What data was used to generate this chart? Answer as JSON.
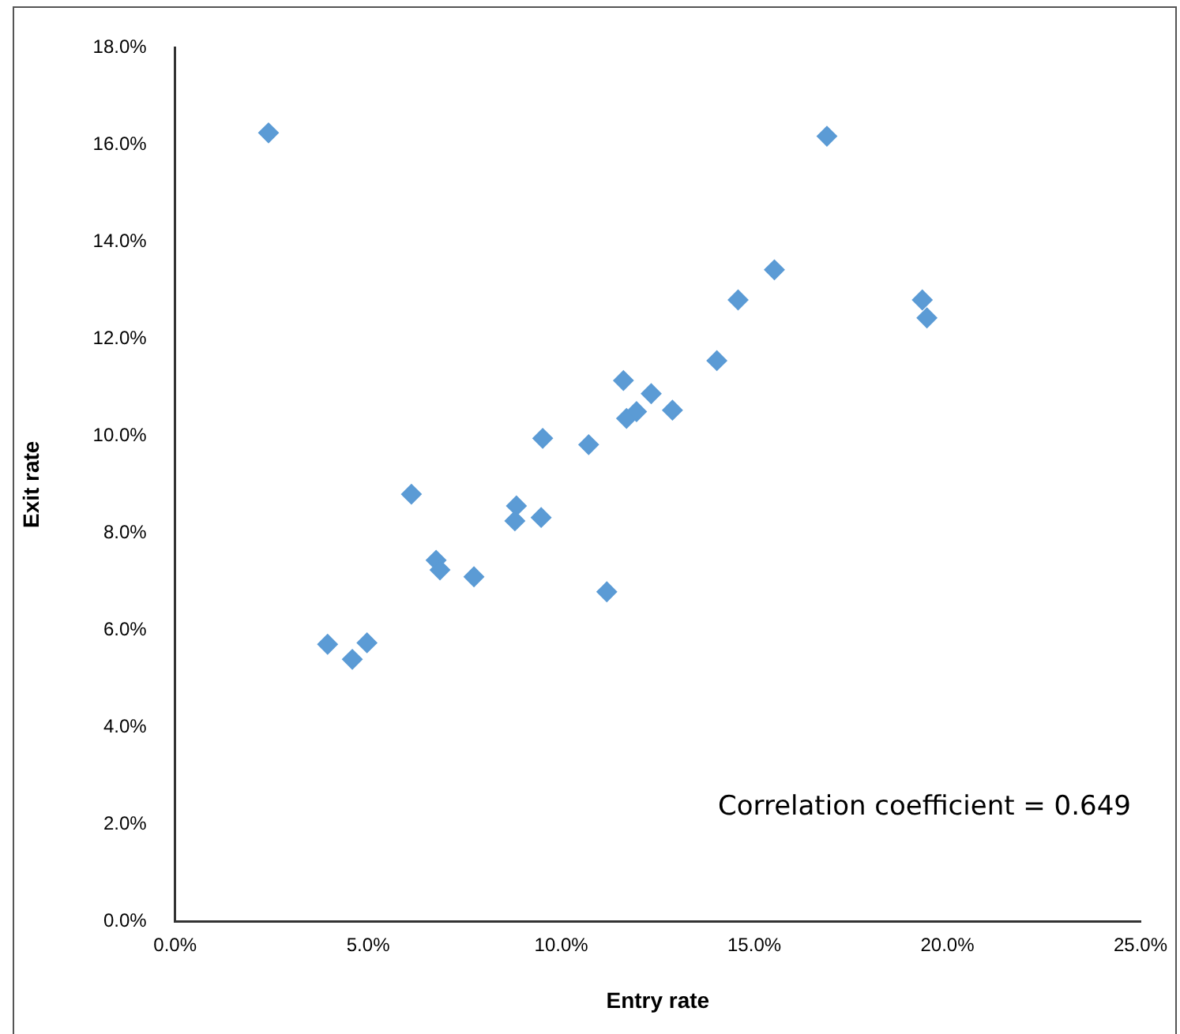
{
  "chart_data": {
    "type": "scatter",
    "xlabel": "Entry rate",
    "ylabel": "Exit rate",
    "annotations": [
      "Correlation coefficient = 0.649"
    ],
    "x": [
      2.42,
      16.88,
      15.52,
      14.58,
      19.35,
      19.47,
      14.03,
      11.61,
      12.33,
      12.88,
      11.69,
      11.95,
      9.52,
      10.71,
      6.12,
      8.84,
      8.8,
      9.48,
      6.76,
      6.86,
      7.74,
      11.18,
      3.95,
      4.59,
      4.97
    ],
    "series": [
      {
        "color": "#5b9bd5",
        "values": [
          16.24,
          16.17,
          13.42,
          12.8,
          12.8,
          12.43,
          11.55,
          11.14,
          10.87,
          10.53,
          10.36,
          10.5,
          9.95,
          9.82,
          8.8,
          8.56,
          8.25,
          8.32,
          7.44,
          7.24,
          7.1,
          6.79,
          5.71,
          5.4,
          5.74
        ]
      }
    ],
    "xlim": [
      0,
      25
    ],
    "ylim": [
      0,
      18
    ],
    "xticks": [
      {
        "value": 0,
        "label": "0.0%"
      },
      {
        "value": 5,
        "label": "5.0%"
      },
      {
        "value": 10,
        "label": "10.0%"
      },
      {
        "value": 15,
        "label": "15.0%"
      },
      {
        "value": 20,
        "label": "20.0%"
      },
      {
        "value": 25,
        "label": "25.0%"
      }
    ],
    "yticks": [
      {
        "value": 0,
        "label": "0.0%"
      },
      {
        "value": 2,
        "label": "2.0%"
      },
      {
        "value": 4,
        "label": "4.0%"
      },
      {
        "value": 6,
        "label": "6.0%"
      },
      {
        "value": 8,
        "label": "8.0%"
      },
      {
        "value": 10,
        "label": "10.0%"
      },
      {
        "value": 12,
        "label": "12.0%"
      },
      {
        "value": 14,
        "label": "14.0%"
      },
      {
        "value": 16,
        "label": "16.0%"
      },
      {
        "value": 18,
        "label": "18.0%"
      }
    ],
    "grid": false,
    "legend": false,
    "marker": "diamond"
  }
}
